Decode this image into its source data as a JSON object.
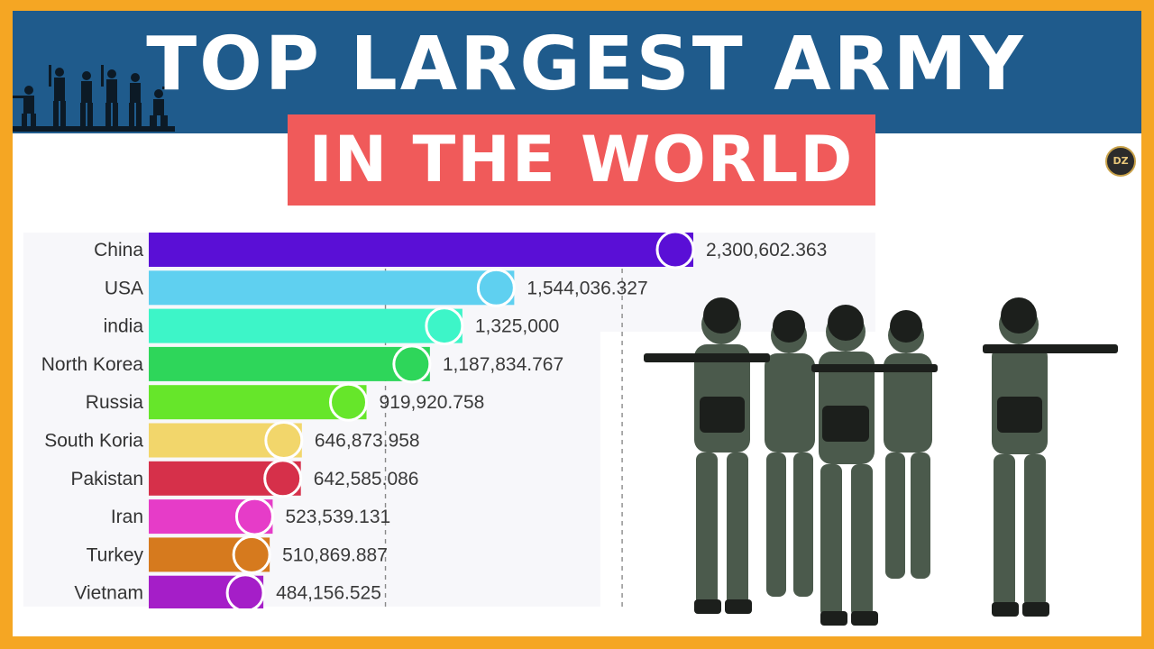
{
  "title": {
    "line1": "TOP LARGEST ARMY",
    "line2": "IN THE WORLD"
  },
  "colors": {
    "frame": "#f5a623",
    "banner": "#1f5b8c",
    "subtitle_box": "#f05a5a"
  },
  "icons": [
    "soldier-silhouette-icon",
    "channel-logo-icon",
    "flag-icon",
    "soldiers-photo-icon"
  ],
  "chart_data": {
    "type": "bar",
    "orientation": "horizontal",
    "categories": [
      "China",
      "USA",
      "india",
      "North Korea",
      "Russia",
      "South Koria",
      "Pakistan",
      "Iran",
      "Turkey",
      "Vietnam"
    ],
    "values": [
      2300602.363,
      1544036.327,
      1325000,
      1187834.767,
      919920.758,
      646873.958,
      642585.086,
      523539.131,
      510869.887,
      484156.525
    ],
    "value_labels": [
      "2,300,602.363",
      "1,544,036.327",
      "1,325,000",
      "1,187,834.767",
      "919,920.758",
      "646,873.958",
      "642,585.086",
      "523,539.131",
      "510,869.887",
      "484,156.525"
    ],
    "colors": [
      "#5a0fd6",
      "#5fd0f0",
      "#3df5c8",
      "#2ed65a",
      "#66e62a",
      "#f2d66b",
      "#d6304a",
      "#e63cc8",
      "#d67a1e",
      "#a51ec8"
    ],
    "grid_values": [
      1000000,
      2000000
    ],
    "grid": true,
    "legend": "none"
  }
}
